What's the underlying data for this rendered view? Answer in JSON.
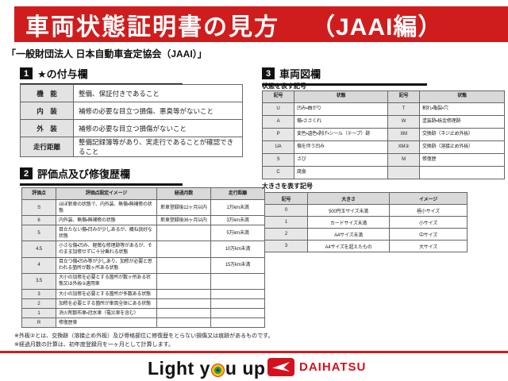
{
  "banner": {
    "title": "車両状態証明書の見方",
    "edition": "（JAAI編）"
  },
  "subtitle": "「一般財団法人 日本自動車査定協会（JAAI）」",
  "section1": {
    "number": "1",
    "title": "★の付与欄",
    "rows": [
      [
        "機　能",
        "整備、保証付きであること"
      ],
      [
        "内　装",
        "補修の必要な目立つ損傷、悪臭等がないこと"
      ],
      [
        "外　装",
        "補修の必要な目立つ損傷がないこと"
      ],
      [
        "走行距離",
        "整備記録簿等があり、実走行であることが確認できること"
      ]
    ]
  },
  "section2": {
    "number": "2",
    "title": "評価点及び修復歴欄",
    "headers": [
      "評価点",
      "評価点設定イメージ",
      "経過月数",
      "走行距離"
    ],
    "rows": [
      [
        "S",
        "ほぼ新車の状態で、内外装、無傷・無補修の状態",
        "新車登録後12ヶ月以内",
        "1万km未満"
      ],
      [
        "6",
        "内外装、無傷・無補修の状態",
        "新車登録後36ヶ月以内",
        "3万km未満"
      ],
      [
        "5",
        "目立たない傷・凹みが少しあるが、概ね良好な状態",
        "",
        "5万km未満"
      ],
      [
        "4.5",
        "小さな傷・凹み、軽微な修理跡等があるが、そのまま加修せずに十分乗れる状態",
        "",
        "10万km未満"
      ],
      [
        "4",
        "目立つ傷・凹み等が少しあり、加修が必要と思われる箇所が数ヶ所ある状態",
        "",
        "15万km未満"
      ],
      [
        "3.5",
        "大小の加修を必要とする箇所が数ヶ所ある状態又は外板②適用車",
        "",
        ""
      ],
      [
        "3",
        "大小の加修を必要とする箇所が多数ある状態",
        "",
        ""
      ],
      [
        "2",
        "加修を必要とする箇所が車両全体にある状態",
        "",
        ""
      ],
      [
        "1",
        "消火剤散布車・冠水車（罹災車を含む）",
        "",
        ""
      ],
      [
        "R",
        "修復歴車",
        "",
        ""
      ]
    ]
  },
  "section3": {
    "number": "3",
    "title": "車両図欄",
    "state_table": {
      "label": "状態を表す記号",
      "headers": [
        "記号",
        "状態",
        "記号",
        "状態"
      ],
      "rows": [
        [
          "U",
          "凹み・曲がり",
          "T",
          "割れ・亀裂・穴"
        ],
        [
          "A",
          "傷・ささくれ",
          "W",
          "塗装跡・板金修理跡"
        ],
        [
          "P",
          "変色・退色・剥げ・シール（テープ）跡",
          "XM",
          "交換跡（ネジ止め外板）"
        ],
        [
          "UA",
          "傷を伴う凹み",
          "XM②",
          "交換跡（溶接止め外板）"
        ],
        [
          "S",
          "さび",
          "M",
          "修復歴"
        ],
        [
          "C",
          "腐食",
          "",
          ""
        ]
      ]
    },
    "size_table": {
      "label": "大きさを表す記号",
      "headers": [
        "記号",
        "大きさ",
        "イメージ"
      ],
      "rows": [
        [
          "0",
          "500円玉サイズ未満",
          "極小サイズ"
        ],
        [
          "1",
          "カードサイズ未満",
          "小サイズ"
        ],
        [
          "2",
          "A4サイズ未満",
          "中サイズ"
        ],
        [
          "3",
          "A4サイズを超えたもの",
          "大サイズ"
        ]
      ]
    }
  },
  "notes": [
    "※外板②とは、交換跡（溶接止め外板）及び骨格部位に修復歴をとらない損傷又は痕跡があるものです。",
    "※経過月数の計算は、初年度登録月を一ヶ月として計算します。"
  ],
  "footer": {
    "slogan_left": "Light y",
    "slogan_right": "u up",
    "brand": "DAIHATSU"
  },
  "colors": {
    "banner_red": "#cf1d1e",
    "brand_red": "#d4121e"
  }
}
